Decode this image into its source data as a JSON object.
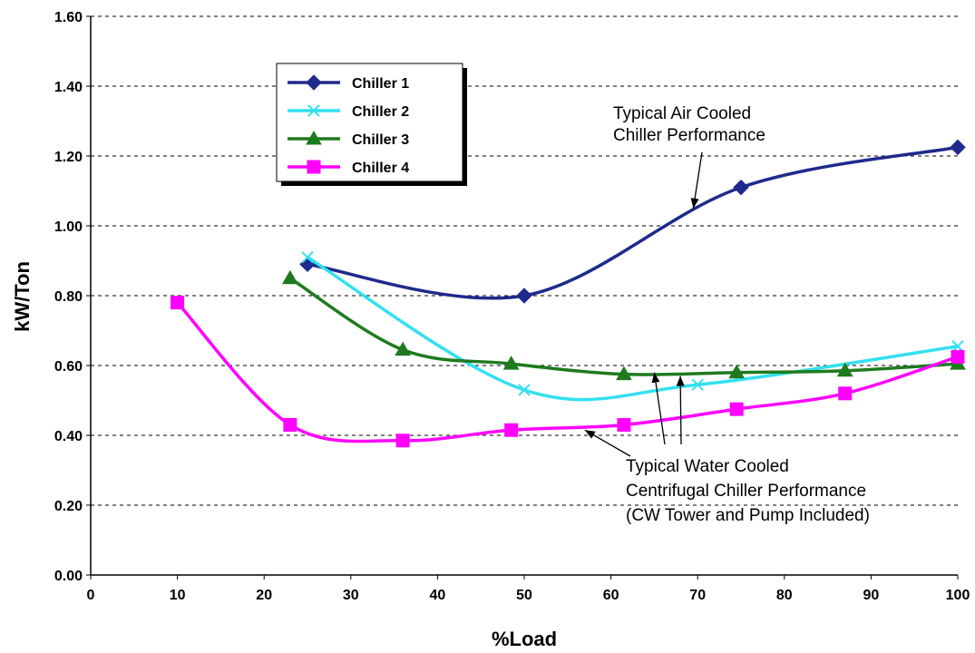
{
  "chart_data": {
    "type": "line",
    "title": "",
    "xlabel": "%Load",
    "ylabel": "kW/Ton",
    "xlim": [
      0,
      100
    ],
    "ylim": [
      0,
      1.6
    ],
    "xticks": [
      "0",
      "10",
      "20",
      "30",
      "40",
      "50",
      "60",
      "70",
      "80",
      "90",
      "100"
    ],
    "yticks": [
      "0.00",
      "0.20",
      "0.40",
      "0.60",
      "0.80",
      "1.00",
      "1.20",
      "1.40",
      "1.60"
    ],
    "grid": "horizontal-dashed",
    "legend": "top-left",
    "series": [
      {
        "name": "Chiller 1",
        "color": "#1f2a8c",
        "marker": "diamond",
        "x": [
          25,
          50,
          75,
          100
        ],
        "y": [
          0.89,
          0.8,
          1.11,
          1.225
        ]
      },
      {
        "name": "Chiller 2",
        "color": "#33e0f0",
        "marker": "x",
        "x": [
          25,
          50,
          70,
          100
        ],
        "y": [
          0.91,
          0.53,
          0.545,
          0.655
        ]
      },
      {
        "name": "Chiller 3",
        "color": "#1e7a1e",
        "marker": "triangle",
        "x": [
          23,
          36,
          48.5,
          61.5,
          74.5,
          87,
          100
        ],
        "y": [
          0.85,
          0.645,
          0.605,
          0.575,
          0.58,
          0.585,
          0.605
        ]
      },
      {
        "name": "Chiller 4",
        "color": "#ff00ff",
        "marker": "square",
        "x": [
          10,
          23,
          36,
          48.5,
          61.5,
          74.5,
          87,
          100
        ],
        "y": [
          0.78,
          0.43,
          0.385,
          0.415,
          0.43,
          0.475,
          0.52,
          0.625
        ]
      }
    ],
    "annotations": [
      {
        "lines": [
          "Typical Air Cooled",
          "Chiller Performance"
        ],
        "arrows": [
          {
            "to_x": 69.5,
            "to_y": 1.05
          }
        ]
      },
      {
        "lines": [
          "Typical Water Cooled",
          "Centrifugal Chiller Performance",
          "(CW Tower and Pump Included)"
        ],
        "arrows": [
          {
            "to_x": 57,
            "to_y": 0.415
          },
          {
            "to_x": 65,
            "to_y": 0.58
          },
          {
            "to_x": 68,
            "to_y": 0.57
          }
        ]
      }
    ]
  }
}
